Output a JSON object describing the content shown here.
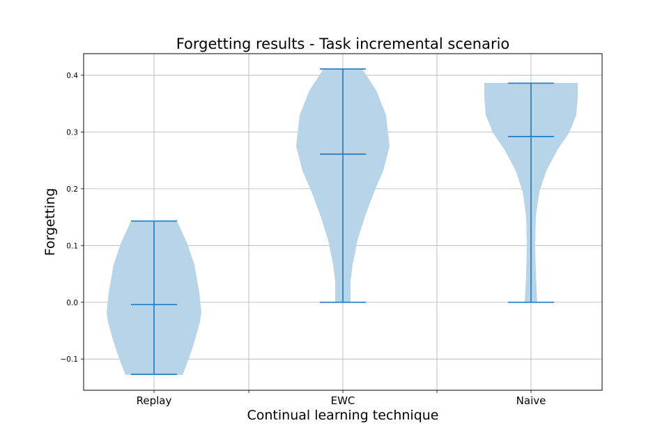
{
  "chart_data": {
    "type": "violin",
    "title": "Forgetting results - Task incremental scenario",
    "xlabel": "Continual learning technique",
    "ylabel": "Forgetting",
    "ylim": [
      -0.155,
      0.438
    ],
    "yticks": [
      -0.1,
      0.0,
      0.1,
      0.2,
      0.3,
      0.4
    ],
    "ytick_labels": [
      "−0.1",
      "0.0",
      "0.1",
      "0.2",
      "0.3",
      "0.4"
    ],
    "grid": true,
    "categories": [
      "Replay",
      "EWC",
      "Naive"
    ],
    "violins": [
      {
        "category": "Replay",
        "min": -0.127,
        "max": 0.143,
        "median": -0.004
      },
      {
        "category": "EWC",
        "min": 0.0,
        "max": 0.411,
        "median": 0.261
      },
      {
        "category": "Naive",
        "min": 0.0,
        "max": 0.386,
        "median": 0.292
      }
    ],
    "colors": {
      "body": "#b8d4e8",
      "lines": "#2f7fc0",
      "grid": "#b0b0b0"
    }
  }
}
